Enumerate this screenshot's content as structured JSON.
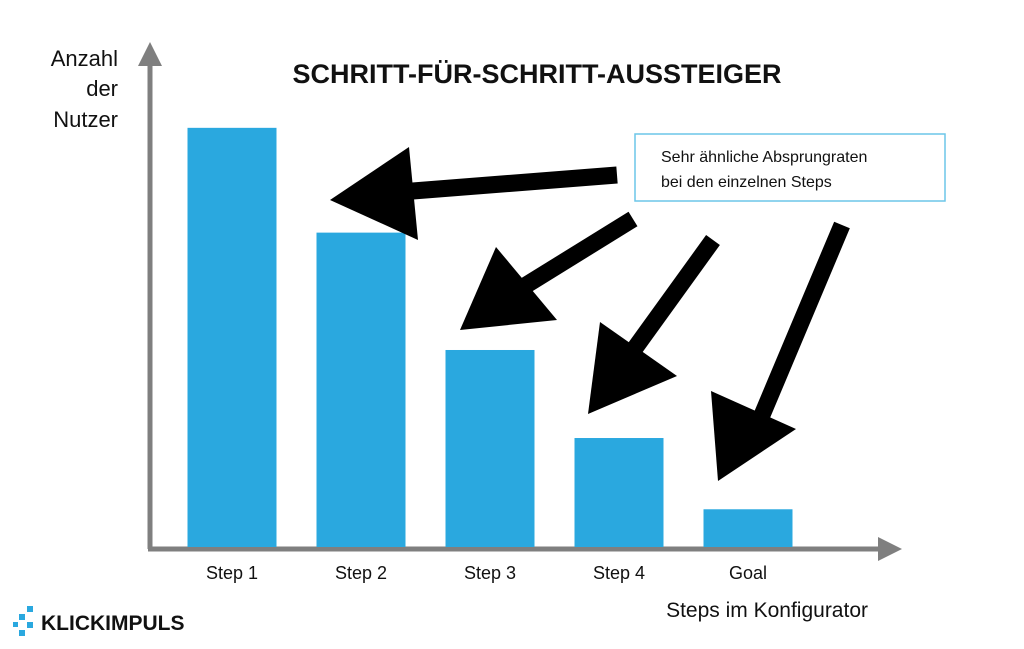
{
  "chart_data": {
    "type": "bar",
    "title": "SCHRITT-FÜR-SCHRITT-AUSSTEIGER",
    "ylabel": [
      "Anzahl",
      "der",
      "Nutzer"
    ],
    "xlabel": "Steps im Konfigurator",
    "categories": [
      "Step 1",
      "Step 2",
      "Step 3",
      "Step 4",
      "Goal"
    ],
    "values": [
      100,
      75,
      47,
      26,
      9
    ],
    "ylim": [
      0,
      120
    ],
    "grid": false,
    "legend": "none",
    "bar_color": "#2aa8df",
    "axis_color": "#7f7f7f",
    "annotation": {
      "lines": [
        "Sehr ähnliche Absprungraten",
        "bei den einzelnen Steps"
      ],
      "border_color": "#6cc6e8"
    }
  },
  "logo": {
    "text": "KLICKIMPULS",
    "accent_color": "#2aa8df"
  }
}
